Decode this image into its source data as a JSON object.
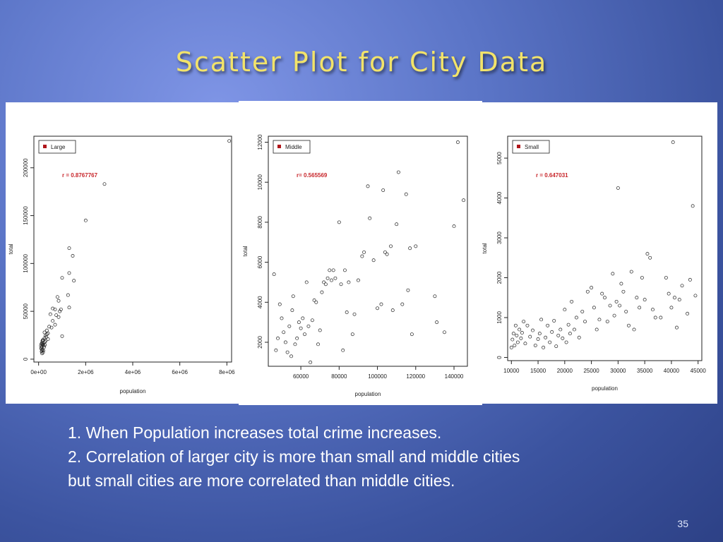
{
  "slide": {
    "title": "Scatter Plot for City Data",
    "bullets": [
      "1. When Population increases total crime increases.",
      "2. Correlation of larger city is more than small and middle cities",
      "but small cities are more correlated than middle cities."
    ],
    "page_number": "35"
  },
  "colors": {
    "title": "#f2e36a",
    "annotation": "#c8262b",
    "legend_marker": "#b0161b",
    "background": "#5a74c6"
  },
  "chart_data": [
    {
      "type": "scatter",
      "legend": "Large",
      "annotation": "r = 0.8767767",
      "xlabel": "population",
      "ylabel": "total",
      "xlim": [
        -200000,
        8200000
      ],
      "ylim": [
        -3000,
        233000
      ],
      "x_ticks": [
        0,
        2000000,
        4000000,
        6000000,
        8000000
      ],
      "x_tick_labels": [
        "0e+00",
        "2e+06",
        "4e+06",
        "6e+06",
        "8e+06"
      ],
      "y_ticks": [
        0,
        50000,
        100000,
        150000,
        200000
      ],
      "y_tick_labels": [
        "0",
        "50000",
        "100000",
        "150000",
        "200000"
      ],
      "points": [
        [
          8100000,
          228000
        ],
        [
          2800000,
          183000
        ],
        [
          2000000,
          145000
        ],
        [
          1300000,
          116000
        ],
        [
          1450000,
          108000
        ],
        [
          1300000,
          90000
        ],
        [
          1500000,
          82000
        ],
        [
          1000000,
          85000
        ],
        [
          1250000,
          67000
        ],
        [
          800000,
          65000
        ],
        [
          850000,
          61000
        ],
        [
          1300000,
          54000
        ],
        [
          700000,
          52000
        ],
        [
          600000,
          53000
        ],
        [
          900000,
          50000
        ],
        [
          750000,
          46000
        ],
        [
          850000,
          44000
        ],
        [
          950000,
          52000
        ],
        [
          500000,
          47000
        ],
        [
          600000,
          40000
        ],
        [
          450000,
          34000
        ],
        [
          550000,
          33000
        ],
        [
          350000,
          30000
        ],
        [
          700000,
          36000
        ],
        [
          400000,
          27000
        ],
        [
          300000,
          25000
        ],
        [
          1000000,
          24000
        ],
        [
          250000,
          22000
        ],
        [
          200000,
          20000
        ],
        [
          150000,
          17000
        ],
        [
          180000,
          15000
        ],
        [
          220000,
          14000
        ],
        [
          120000,
          12000
        ],
        [
          160000,
          10000
        ],
        [
          200000,
          9000
        ],
        [
          130000,
          8000
        ],
        [
          170000,
          16000
        ],
        [
          260000,
          18000
        ],
        [
          140000,
          13000
        ],
        [
          110000,
          11000
        ],
        [
          230000,
          12500
        ],
        [
          300000,
          19000
        ],
        [
          190000,
          7000
        ],
        [
          250000,
          28000
        ],
        [
          320000,
          23000
        ],
        [
          150000,
          6000
        ],
        [
          100000,
          14000
        ],
        [
          400000,
          21000
        ],
        [
          180000,
          20000
        ],
        [
          120000,
          16000
        ],
        [
          210000,
          17000
        ],
        [
          140000,
          9000
        ],
        [
          350000,
          26000
        ],
        [
          270000,
          15000
        ],
        [
          160000,
          19000
        ]
      ]
    },
    {
      "type": "scatter",
      "legend": "Middle",
      "annotation": "r= 0.565569",
      "xlabel": "population",
      "ylabel": "total",
      "xlim": [
        43000,
        147000
      ],
      "ylim": [
        800,
        12300
      ],
      "x_ticks": [
        60000,
        80000,
        100000,
        120000,
        140000
      ],
      "x_tick_labels": [
        "60000",
        "80000",
        "100000",
        "120000",
        "140000"
      ],
      "y_ticks": [
        2000,
        4000,
        6000,
        8000,
        10000,
        12000
      ],
      "y_tick_labels": [
        "2000",
        "4000",
        "6000",
        "8000",
        "10000",
        "12000"
      ],
      "points": [
        [
          46000,
          5400
        ],
        [
          47000,
          1600
        ],
        [
          48000,
          2200
        ],
        [
          49000,
          3900
        ],
        [
          50000,
          3200
        ],
        [
          51000,
          2500
        ],
        [
          52000,
          2000
        ],
        [
          53000,
          1500
        ],
        [
          54000,
          2800
        ],
        [
          55000,
          1300
        ],
        [
          55500,
          3600
        ],
        [
          56000,
          4300
        ],
        [
          57000,
          1900
        ],
        [
          58000,
          2200
        ],
        [
          59000,
          3000
        ],
        [
          60000,
          2700
        ],
        [
          61000,
          3200
        ],
        [
          62000,
          2400
        ],
        [
          63000,
          5000
        ],
        [
          64000,
          2800
        ],
        [
          65000,
          1000
        ],
        [
          66000,
          3100
        ],
        [
          67000,
          4100
        ],
        [
          68000,
          4000
        ],
        [
          69000,
          1900
        ],
        [
          70000,
          2600
        ],
        [
          71000,
          4500
        ],
        [
          72000,
          5000
        ],
        [
          73000,
          4900
        ],
        [
          74000,
          5200
        ],
        [
          75000,
          5600
        ],
        [
          76000,
          5100
        ],
        [
          77000,
          5600
        ],
        [
          78000,
          5200
        ],
        [
          80000,
          8000
        ],
        [
          81000,
          4900
        ],
        [
          82000,
          1600
        ],
        [
          83000,
          5600
        ],
        [
          84000,
          3500
        ],
        [
          85000,
          5000
        ],
        [
          87000,
          2400
        ],
        [
          88000,
          3400
        ],
        [
          90000,
          5100
        ],
        [
          92000,
          6300
        ],
        [
          93000,
          6500
        ],
        [
          95000,
          9800
        ],
        [
          96000,
          8200
        ],
        [
          98000,
          6100
        ],
        [
          100000,
          3700
        ],
        [
          102000,
          3900
        ],
        [
          103000,
          9600
        ],
        [
          104000,
          6500
        ],
        [
          105000,
          6400
        ],
        [
          107000,
          6800
        ],
        [
          108000,
          3600
        ],
        [
          110000,
          7900
        ],
        [
          111000,
          10500
        ],
        [
          113000,
          3900
        ],
        [
          115000,
          9400
        ],
        [
          116000,
          4600
        ],
        [
          117000,
          6700
        ],
        [
          118000,
          2400
        ],
        [
          120000,
          6800
        ],
        [
          130000,
          4300
        ],
        [
          131000,
          3000
        ],
        [
          135000,
          2500
        ],
        [
          140000,
          7800
        ],
        [
          142000,
          12000
        ],
        [
          145000,
          9100
        ]
      ]
    },
    {
      "type": "scatter",
      "legend": "Small",
      "annotation": "r = 0.647031",
      "xlabel": "population",
      "ylabel": "total",
      "xlim": [
        9300,
        45700
      ],
      "ylim": [
        -80,
        5550
      ],
      "x_ticks": [
        10000,
        15000,
        20000,
        25000,
        30000,
        35000,
        40000,
        45000
      ],
      "x_tick_labels": [
        "10000",
        "15000",
        "20000",
        "25000",
        "30000",
        "35000",
        "40000",
        "45000"
      ],
      "y_ticks": [
        0,
        1000,
        2000,
        3000,
        4000,
        5000
      ],
      "y_tick_labels": [
        "0",
        "1000",
        "2000",
        "3000",
        "4000",
        "5000"
      ],
      "points": [
        [
          10000,
          250
        ],
        [
          10200,
          450
        ],
        [
          10400,
          600
        ],
        [
          10600,
          300
        ],
        [
          10800,
          800
        ],
        [
          11000,
          550
        ],
        [
          11200,
          380
        ],
        [
          11500,
          700
        ],
        [
          11800,
          480
        ],
        [
          12000,
          620
        ],
        [
          12300,
          900
        ],
        [
          12600,
          350
        ],
        [
          13000,
          800
        ],
        [
          13500,
          520
        ],
        [
          14000,
          680
        ],
        [
          14500,
          300
        ],
        [
          15000,
          460
        ],
        [
          15300,
          600
        ],
        [
          15600,
          950
        ],
        [
          16000,
          250
        ],
        [
          16400,
          500
        ],
        [
          16800,
          800
        ],
        [
          17200,
          380
        ],
        [
          17600,
          640
        ],
        [
          18000,
          920
        ],
        [
          18400,
          280
        ],
        [
          18800,
          550
        ],
        [
          19200,
          700
        ],
        [
          19600,
          480
        ],
        [
          20000,
          1200
        ],
        [
          20300,
          380
        ],
        [
          20700,
          820
        ],
        [
          21000,
          600
        ],
        [
          21300,
          1400
        ],
        [
          21800,
          700
        ],
        [
          22200,
          1000
        ],
        [
          22700,
          500
        ],
        [
          23300,
          1150
        ],
        [
          23800,
          900
        ],
        [
          24300,
          1650
        ],
        [
          25000,
          1750
        ],
        [
          25500,
          1250
        ],
        [
          26000,
          700
        ],
        [
          26500,
          950
        ],
        [
          27000,
          1600
        ],
        [
          27500,
          1500
        ],
        [
          28000,
          900
        ],
        [
          28500,
          1300
        ],
        [
          29000,
          2100
        ],
        [
          29300,
          1050
        ],
        [
          29700,
          1400
        ],
        [
          30000,
          4250
        ],
        [
          30300,
          1300
        ],
        [
          30600,
          1850
        ],
        [
          31000,
          1650
        ],
        [
          31500,
          1150
        ],
        [
          32000,
          800
        ],
        [
          32500,
          2150
        ],
        [
          33000,
          700
        ],
        [
          33500,
          1500
        ],
        [
          34000,
          1250
        ],
        [
          34500,
          2000
        ],
        [
          35000,
          1450
        ],
        [
          35500,
          2600
        ],
        [
          36000,
          2500
        ],
        [
          36500,
          1200
        ],
        [
          37000,
          1000
        ],
        [
          38000,
          1000
        ],
        [
          39000,
          2000
        ],
        [
          39500,
          1600
        ],
        [
          40000,
          1250
        ],
        [
          40300,
          5400
        ],
        [
          40600,
          1500
        ],
        [
          41000,
          750
        ],
        [
          41500,
          1450
        ],
        [
          42000,
          1800
        ],
        [
          43000,
          1100
        ],
        [
          43500,
          1950
        ],
        [
          44000,
          3800
        ],
        [
          44500,
          1550
        ]
      ]
    }
  ]
}
